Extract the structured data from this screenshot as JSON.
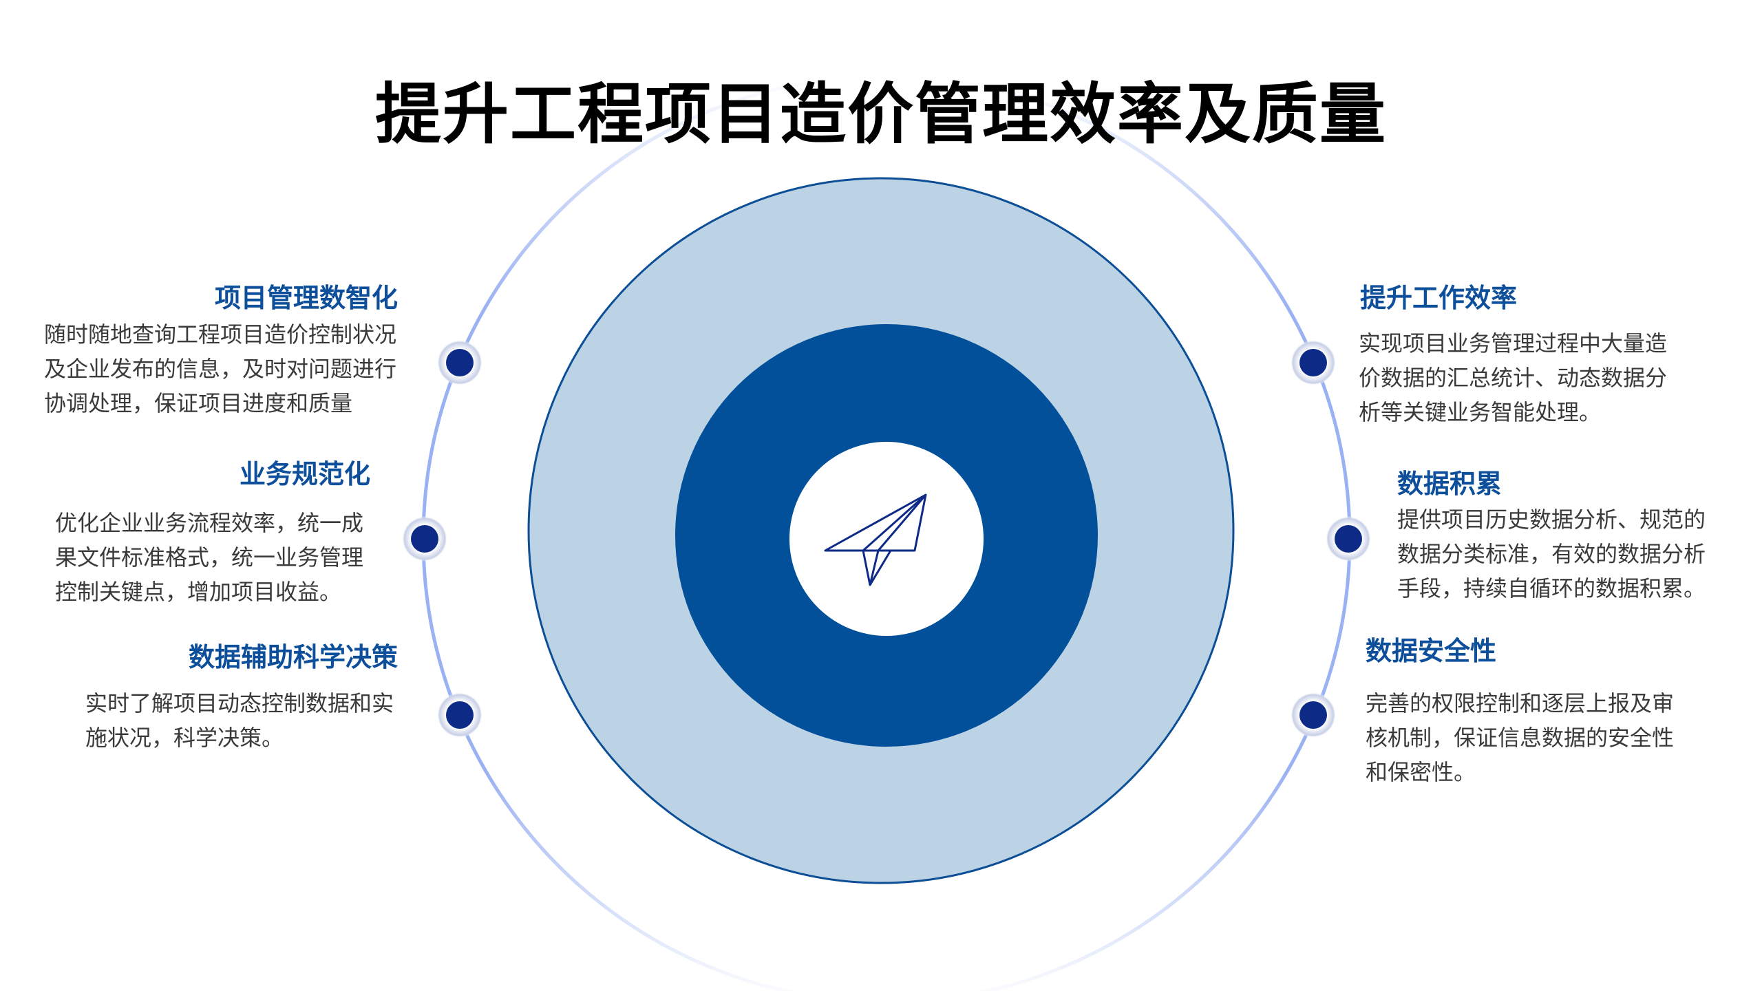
{
  "title": "提升工程项目造价管理效率及质量",
  "colors": {
    "heading": "#0d4f9a",
    "outer_circle": "#bcd3e6",
    "inner_circle": "#02509a",
    "dot": "#0d2a87",
    "arc": "#8fa8f0"
  },
  "center_icon": "paper-plane-icon",
  "left_items": [
    {
      "heading": "项目管理数智化",
      "lines": [
        "随时随地查询工程项目造价控制状况",
        "及企业发布的信息，及时对问题进行",
        "协调处理，保证项目进度和质量"
      ]
    },
    {
      "heading": "业务规范化",
      "lines": [
        "优化企业业务流程效率，统一成",
        "果文件标准格式，统一业务管理",
        "控制关键点，增加项目收益。"
      ]
    },
    {
      "heading": "数据辅助科学决策",
      "lines": [
        "实时了解项目动态控制数据和实",
        "施状况，科学决策。"
      ]
    }
  ],
  "right_items": [
    {
      "heading": "提升工作效率",
      "lines": [
        "实现项目业务管理过程中大量造",
        "价数据的汇总统计、动态数据分",
        "析等关键业务智能处理。"
      ]
    },
    {
      "heading": "数据积累",
      "lines": [
        "提供项目历史数据分析、规范的",
        "数据分类标准，有效的数据分析",
        "手段，持续自循环的数据积累。"
      ]
    },
    {
      "heading": "数据安全性",
      "lines": [
        "完善的权限控制和逐层上报及审",
        "核机制，保证信息数据的安全性",
        "和保密性。"
      ]
    }
  ]
}
